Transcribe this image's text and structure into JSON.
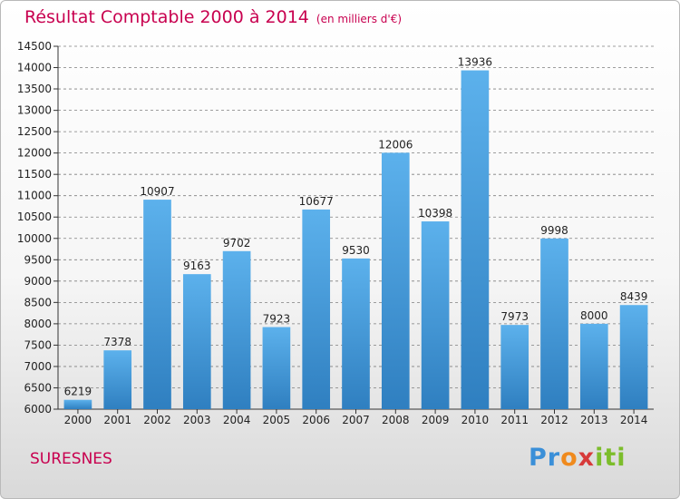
{
  "title": "Résultat Comptable 2000 à 2014",
  "unit_note": "(en milliers d'€)",
  "commune": "SURESNES",
  "logo": {
    "text": "Proxiti"
  },
  "colors": {
    "bar": "#4a9fe0",
    "bar_top": "#5cb1ec",
    "bar_bottom": "#2f7fc0",
    "title": "#c8004f",
    "grid": "#7f7f7f"
  },
  "chart_data": {
    "type": "bar",
    "categories": [
      "2000",
      "2001",
      "2002",
      "2003",
      "2004",
      "2005",
      "2006",
      "2007",
      "2008",
      "2009",
      "2010",
      "2011",
      "2012",
      "2013",
      "2014"
    ],
    "values": [
      6219,
      7378,
      10907,
      9163,
      9702,
      7923,
      10677,
      9530,
      12006,
      10398,
      13936,
      7973,
      9998,
      8000,
      8439
    ],
    "title": "Résultat Comptable 2000 à 2014",
    "ylim": [
      6000,
      14500
    ],
    "yticks": [
      6000,
      6500,
      7000,
      7500,
      8000,
      8500,
      9000,
      9500,
      10000,
      10500,
      11000,
      11500,
      12000,
      12500,
      13000,
      13500,
      14000,
      14500
    ],
    "grid": "horizontal dashed",
    "data_labels": true,
    "legend": "none"
  }
}
